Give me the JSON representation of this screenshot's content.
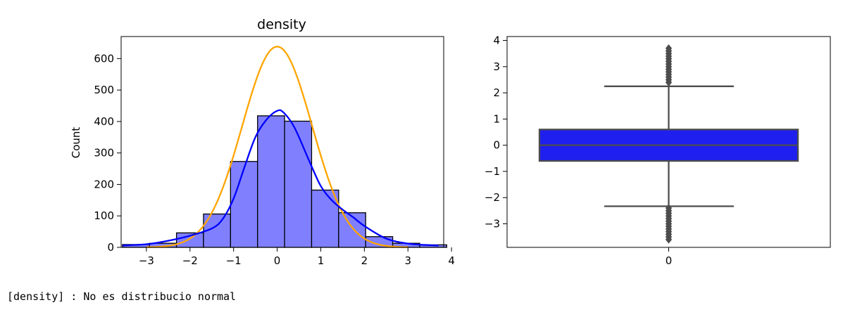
{
  "chart_data": [
    {
      "type": "bar",
      "subtype": "histogram",
      "title": "density",
      "ylabel": "Count",
      "xlim": [
        -3.58,
        3.82
      ],
      "ylim": [
        0,
        670
      ],
      "xticks": [
        -3,
        -2,
        -1,
        0,
        1,
        2,
        3,
        4
      ],
      "xtick_labels": [
        "−3",
        "−2",
        "−1",
        "0",
        "1",
        "2",
        "3",
        "4"
      ],
      "yticks": [
        0,
        100,
        200,
        300,
        400,
        500,
        600
      ],
      "ytick_labels": [
        "0",
        "100",
        "200",
        "300",
        "400",
        "500",
        "600"
      ],
      "bin_edges": [
        -3.55,
        -2.93,
        -2.31,
        -1.69,
        -1.07,
        -0.45,
        0.17,
        0.79,
        1.41,
        2.03,
        2.65,
        3.27,
        3.89
      ],
      "counts": [
        9,
        13,
        46,
        106,
        273,
        418,
        401,
        182,
        110,
        34,
        13,
        8
      ],
      "bar_color": "#8080ff",
      "bar_edge_color": "#000000",
      "kde": {
        "color": "#0000ff",
        "x": [
          -3.55,
          -3.0,
          -2.5,
          -2.0,
          -1.5,
          -1.25,
          -1.0,
          -0.75,
          -0.5,
          -0.25,
          0.0,
          0.15,
          0.4,
          0.75,
          1.0,
          1.25,
          1.5,
          1.75,
          2.0,
          2.5,
          3.0,
          3.5,
          3.7
        ],
        "y": [
          6,
          10,
          21,
          37,
          60,
          90,
          155,
          255,
          350,
          405,
          434,
          428,
          380,
          270,
          195,
          150,
          120,
          95,
          68,
          28,
          12,
          7,
          6
        ]
      },
      "normal_curve": {
        "color": "#ffa500",
        "peak": 638,
        "mean": 0.0,
        "sd": 0.8,
        "x_range": [
          -3.0,
          3.0
        ]
      },
      "grid": false
    },
    {
      "type": "box",
      "ylim": [
        -3.9,
        4.15
      ],
      "yticks": [
        -3,
        -2,
        -1,
        0,
        1,
        2,
        3,
        4
      ],
      "ytick_labels": [
        "−3",
        "−2",
        "−1",
        "0",
        "1",
        "2",
        "3",
        "4"
      ],
      "xtick_labels": [
        "0"
      ],
      "box_color": "#1f1fef",
      "line_color": "#4d4d4d",
      "median": 0.0,
      "q1": -0.6,
      "q3": 0.6,
      "whisker_low": -2.33,
      "whisker_high": 2.25,
      "outliers": [
        2.4,
        2.5,
        2.6,
        2.7,
        2.8,
        2.9,
        3.0,
        3.1,
        3.2,
        3.3,
        3.4,
        3.5,
        3.6,
        3.7,
        -2.4,
        -2.5,
        -2.6,
        -2.7,
        -2.8,
        -2.9,
        -3.0,
        -3.1,
        -3.2,
        -3.3,
        -3.4,
        -3.5,
        -3.6
      ],
      "grid": false
    }
  ],
  "output": {
    "text": "[density] : No es distribucio normal"
  }
}
